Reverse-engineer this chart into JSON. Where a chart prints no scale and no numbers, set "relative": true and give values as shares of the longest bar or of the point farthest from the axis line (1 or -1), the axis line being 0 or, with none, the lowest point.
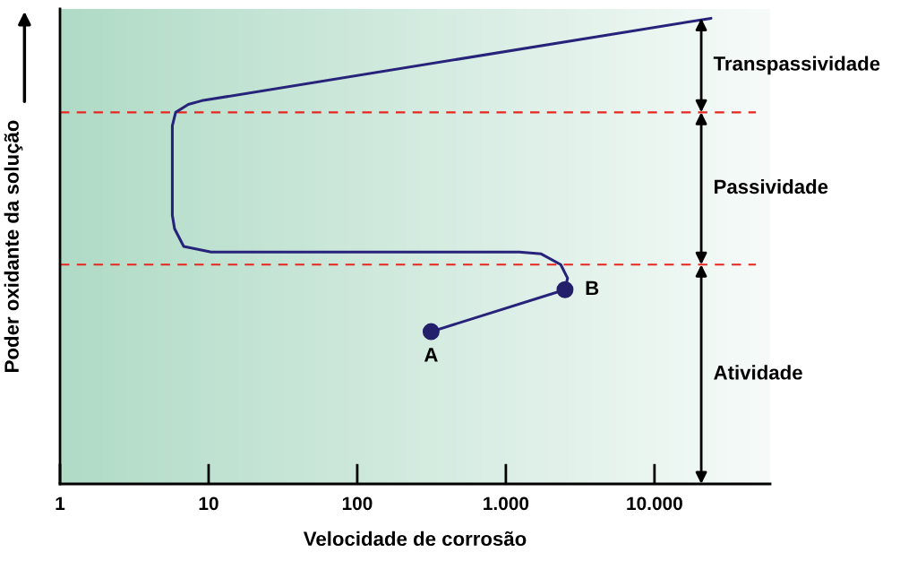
{
  "chart_data": {
    "type": "line",
    "xlabel": "Velocidade de corrosão",
    "ylabel": "Poder oxidante da solução",
    "relative": true,
    "log": "x",
    "xlim": [
      1,
      60000
    ],
    "xticks": [
      1,
      10,
      100,
      {
        "value": 1000,
        "label": "1.000"
      },
      {
        "value": 10000,
        "label": "10.000"
      }
    ],
    "series": [
      {
        "color": "#27237a",
        "x": [
          314,
          2500,
          2600,
          2340,
          1730,
          1230,
          10.4,
          6.8,
          5.9,
          5.7,
          5.7,
          6.0,
          7.3,
          9.0,
          24000
        ],
        "values": [
          0.327,
          0.417,
          0.442,
          0.471,
          0.494,
          0.498,
          0.498,
          0.51,
          0.548,
          0.577,
          0.769,
          0.798,
          0.815,
          0.823,
          1.0
        ]
      },
      {
        "type": "scatter",
        "color": "#231f6b",
        "marker": "circle",
        "x": [
          314,
          2500
        ],
        "values": [
          0.327,
          0.417
        ]
      }
    ],
    "ref_lines": [
      {
        "axis": "y",
        "value": 0.471,
        "color": "#e8261f",
        "line_style": "dashed"
      },
      {
        "axis": "y",
        "value": 0.798,
        "color": "#e8261f",
        "line_style": "dashed"
      }
    ],
    "annotations": [
      {
        "text": "A",
        "x": 314,
        "y": 0.327
      },
      {
        "text": "B",
        "x": 2500,
        "y": 0.417
      },
      "Atividade",
      "Passividade",
      "Transpassividade"
    ],
    "grid": false,
    "legend": false
  }
}
